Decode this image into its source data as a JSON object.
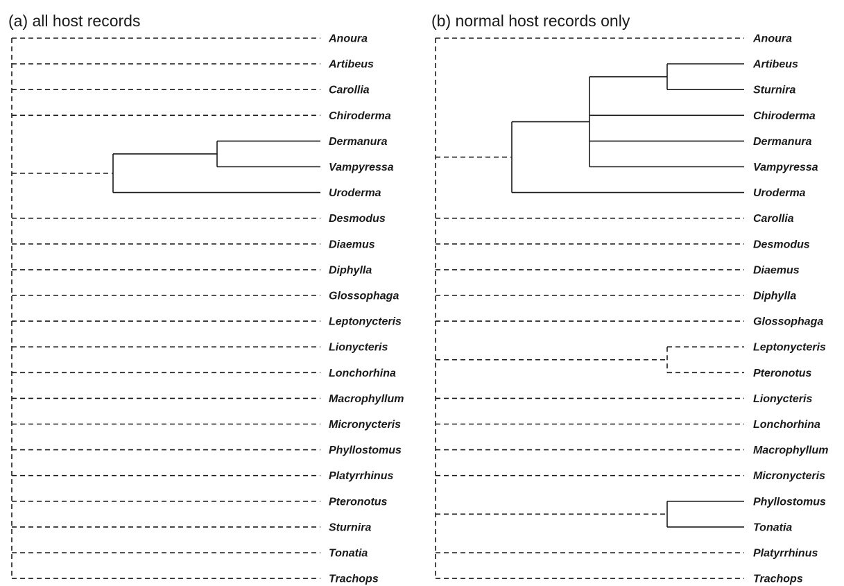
{
  "panels": [
    {
      "title": "(a) all host records",
      "taxa": [
        "Anoura",
        "Artibeus",
        "Carollia",
        "Chiroderma",
        "Dermanura",
        "Vampyressa",
        "Uroderma",
        "Desmodus",
        "Diaemus",
        "Diphylla",
        "Glossophaga",
        "Leptonycteris",
        "Lionycteris",
        "Lonchorhina",
        "Macrophyllum",
        "Micronycteris",
        "Phyllostomus",
        "Platyrrhinus",
        "Pteronotus",
        "Sturnira",
        "Tonatia",
        "Trachops"
      ],
      "tree": {
        "style": "dashed",
        "children": [
          {
            "leaf": "Anoura"
          },
          {
            "leaf": "Artibeus"
          },
          {
            "leaf": "Carollia"
          },
          {
            "leaf": "Chiroderma"
          },
          {
            "style": "solid",
            "children": [
              {
                "style": "solid",
                "children": [
                  {
                    "leaf": "Dermanura"
                  },
                  {
                    "leaf": "Vampyressa"
                  }
                ]
              },
              {
                "leaf": "Uroderma"
              }
            ]
          },
          {
            "leaf": "Desmodus"
          },
          {
            "leaf": "Diaemus"
          },
          {
            "leaf": "Diphylla"
          },
          {
            "leaf": "Glossophaga"
          },
          {
            "leaf": "Leptonycteris"
          },
          {
            "leaf": "Lionycteris"
          },
          {
            "leaf": "Lonchorhina"
          },
          {
            "leaf": "Macrophyllum"
          },
          {
            "leaf": "Micronycteris"
          },
          {
            "leaf": "Phyllostomus"
          },
          {
            "leaf": "Platyrrhinus"
          },
          {
            "leaf": "Pteronotus"
          },
          {
            "leaf": "Sturnira"
          },
          {
            "leaf": "Tonatia"
          },
          {
            "leaf": "Trachops"
          }
        ]
      }
    },
    {
      "title": "(b) normal host records only",
      "taxa": [
        "Anoura",
        "Artibeus",
        "Sturnira",
        "Chiroderma",
        "Dermanura",
        "Vampyressa",
        "Uroderma",
        "Carollia",
        "Desmodus",
        "Diaemus",
        "Diphylla",
        "Glossophaga",
        "Leptonycteris",
        "Pteronotus",
        "Lionycteris",
        "Lonchorhina",
        "Macrophyllum",
        "Micronycteris",
        "Phyllostomus",
        "Tonatia",
        "Platyrrhinus",
        "Trachops"
      ],
      "tree": {
        "style": "dashed",
        "children": [
          {
            "leaf": "Anoura"
          },
          {
            "style": "solid",
            "children": [
              {
                "style": "solid",
                "children": [
                  {
                    "style": "solid",
                    "children": [
                      {
                        "leaf": "Artibeus"
                      },
                      {
                        "leaf": "Sturnira"
                      }
                    ]
                  },
                  {
                    "leaf": "Chiroderma"
                  },
                  {
                    "leaf": "Dermanura"
                  },
                  {
                    "leaf": "Vampyressa"
                  }
                ]
              },
              {
                "leaf": "Uroderma"
              }
            ]
          },
          {
            "leaf": "Carollia"
          },
          {
            "leaf": "Desmodus"
          },
          {
            "leaf": "Diaemus"
          },
          {
            "leaf": "Diphylla"
          },
          {
            "leaf": "Glossophaga"
          },
          {
            "style": "dashed",
            "children": [
              {
                "leaf": "Leptonycteris"
              },
              {
                "leaf": "Pteronotus"
              }
            ]
          },
          {
            "leaf": "Lionycteris"
          },
          {
            "leaf": "Lonchorhina"
          },
          {
            "leaf": "Macrophyllum"
          },
          {
            "leaf": "Micronycteris"
          },
          {
            "style": "solid",
            "children": [
              {
                "leaf": "Phyllostomus"
              },
              {
                "leaf": "Tonatia"
              }
            ]
          },
          {
            "leaf": "Platyrrhinus"
          },
          {
            "leaf": "Trachops"
          }
        ]
      }
    }
  ]
}
